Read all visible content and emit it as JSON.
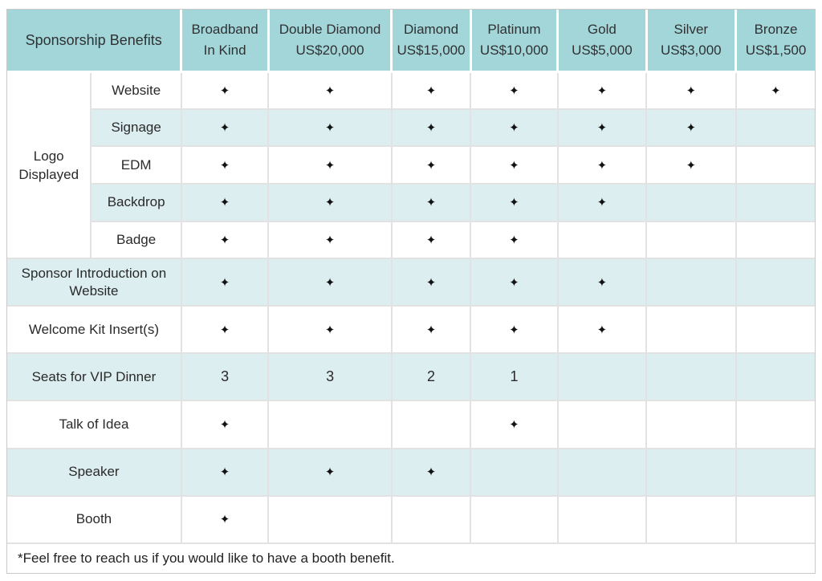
{
  "table": {
    "title": "Sponsorship Benefits",
    "colors": {
      "header_bg": "#a3d6d9",
      "shaded_row_bg": "#dceef0",
      "grid_line": "#e2e2e2",
      "outer_border": "#c9c9c9",
      "text": "#2a2a2a"
    },
    "mark_symbol": "✦",
    "tiers": [
      {
        "name": "Broadband",
        "price": "In Kind"
      },
      {
        "name": "Double Diamond",
        "price": "US$20,000"
      },
      {
        "name": "Diamond",
        "price": "US$15,000"
      },
      {
        "name": "Platinum",
        "price": "US$10,000"
      },
      {
        "name": "Gold",
        "price": "US$5,000"
      },
      {
        "name": "Silver",
        "price": "US$3,000"
      },
      {
        "name": "Bronze",
        "price": "US$1,500"
      }
    ],
    "logo_group_label": "Logo Displayed",
    "rows": [
      {
        "label": "Website",
        "section": "logo",
        "shaded": false,
        "cells": [
          "✦",
          "✦",
          "✦",
          "✦",
          "✦",
          "✦",
          "✦"
        ]
      },
      {
        "label": "Signage",
        "section": "logo",
        "shaded": true,
        "cells": [
          "✦",
          "✦",
          "✦",
          "✦",
          "✦",
          "✦",
          ""
        ]
      },
      {
        "label": "EDM",
        "section": "logo",
        "shaded": false,
        "cells": [
          "✦",
          "✦",
          "✦",
          "✦",
          "✦",
          "✦",
          ""
        ]
      },
      {
        "label": "Backdrop",
        "section": "logo",
        "shaded": true,
        "cells": [
          "✦",
          "✦",
          "✦",
          "✦",
          "✦",
          "",
          ""
        ]
      },
      {
        "label": "Badge",
        "section": "logo",
        "shaded": false,
        "cells": [
          "✦",
          "✦",
          "✦",
          "✦",
          "",
          "",
          ""
        ]
      },
      {
        "label": "Sponsor Introduction on Website",
        "section": "main",
        "shaded": true,
        "cells": [
          "✦",
          "✦",
          "✦",
          "✦",
          "✦",
          "",
          ""
        ]
      },
      {
        "label": "Welcome Kit Insert(s)",
        "section": "main",
        "shaded": false,
        "cells": [
          "✦",
          "✦",
          "✦",
          "✦",
          "✦",
          "",
          ""
        ]
      },
      {
        "label": "Seats for VIP Dinner",
        "section": "main",
        "shaded": true,
        "cells": [
          "3",
          "3",
          "2",
          "1",
          "",
          "",
          ""
        ]
      },
      {
        "label": "Talk of Idea",
        "section": "main",
        "shaded": false,
        "cells": [
          "✦",
          "",
          "",
          "✦",
          "",
          "",
          ""
        ]
      },
      {
        "label": "Speaker",
        "section": "main",
        "shaded": true,
        "cells": [
          "✦",
          "✦",
          "✦",
          "",
          "",
          "",
          ""
        ]
      },
      {
        "label": "Booth",
        "section": "main",
        "shaded": false,
        "cells": [
          "✦",
          "",
          "",
          "",
          "",
          "",
          ""
        ]
      }
    ],
    "footnote": "*Feel free to reach us if you would like to have a booth benefit."
  }
}
